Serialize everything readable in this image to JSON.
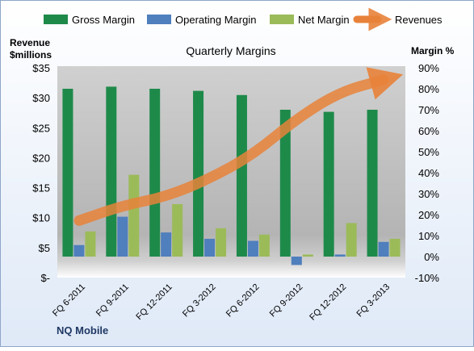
{
  "chart_data": {
    "type": "bar",
    "title": "Quarterly Margins",
    "left_axis_title_line1": "Revenue",
    "left_axis_title_line2": "$millions",
    "right_axis_title": "Margin %",
    "company": "NQ Mobile",
    "categories": [
      "FQ 6-2011",
      "FQ 9-2011",
      "FQ 12-2011",
      "FQ 3-2012",
      "FQ 6-2012",
      "FQ 9-2012",
      "FQ 12-2012",
      "FQ 3-2013"
    ],
    "left_axis": {
      "ylim": [
        0,
        35
      ],
      "ticks": [
        0,
        5,
        10,
        15,
        20,
        25,
        30,
        35
      ],
      "tick_labels": [
        "$-",
        "$5",
        "$10",
        "$15",
        "$20",
        "$25",
        "$30",
        "$35"
      ]
    },
    "right_axis": {
      "ylim": [
        -10,
        90
      ],
      "ticks": [
        -10,
        0,
        10,
        20,
        30,
        40,
        50,
        60,
        70,
        80,
        90
      ],
      "tick_labels": [
        "-10%",
        "0%",
        "10%",
        "20%",
        "30%",
        "40%",
        "50%",
        "60%",
        "70%",
        "80%",
        "90%"
      ]
    },
    "series": [
      {
        "name": "Gross Margin",
        "axis": "right",
        "kind": "bar",
        "color": "#1e8a4a",
        "values": [
          80,
          81,
          80,
          79,
          77,
          70,
          69,
          70
        ]
      },
      {
        "name": "Operating Margin",
        "axis": "right",
        "kind": "bar",
        "color": "#4f7fbd",
        "values": [
          5.5,
          19,
          11.5,
          8.5,
          7.5,
          -4,
          1,
          7
        ]
      },
      {
        "name": "Net Margin",
        "axis": "right",
        "kind": "bar",
        "color": "#9bbb59",
        "values": [
          12,
          39,
          25,
          13.5,
          10.5,
          1,
          16,
          8.5
        ]
      },
      {
        "name": "Revenues",
        "axis": "left",
        "kind": "line",
        "color": "#e8823a",
        "values": [
          9.5,
          12,
          13.5,
          16.5,
          20.5,
          26.5,
          31,
          33
        ]
      }
    ],
    "legend": {
      "placement": "top"
    },
    "grid": false
  }
}
